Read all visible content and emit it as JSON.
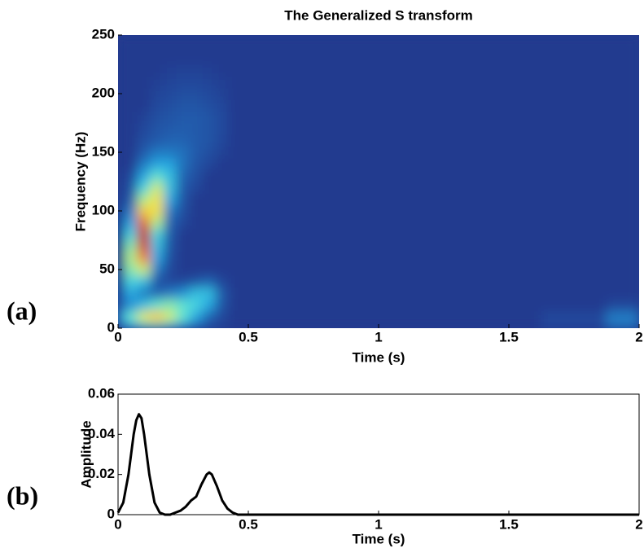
{
  "chart_data": [
    {
      "type": "heatmap",
      "title": "The Generalized S transform",
      "panel_label": "(a)",
      "x_label": "Time (s)",
      "y_label": "Frequency (Hz)",
      "x": [
        0,
        0.05,
        0.1,
        0.15,
        0.2,
        0.25,
        0.3,
        0.35,
        0.4,
        0.45,
        0.5,
        0.75,
        1,
        1.25,
        1.5,
        1.75,
        2
      ],
      "y": [
        0,
        10,
        20,
        30,
        40,
        50,
        60,
        70,
        80,
        90,
        100,
        110,
        120,
        130,
        140,
        150,
        160,
        170,
        180,
        190,
        200,
        210,
        220,
        230,
        240,
        250
      ],
      "z": [
        [
          0.1,
          0.3,
          0.4,
          0.45,
          0.35,
          0.25,
          0.15,
          0.08,
          0.03,
          0,
          0,
          0,
          0,
          0,
          0,
          0.05,
          0.2
        ],
        [
          0.25,
          0.45,
          0.65,
          0.75,
          0.6,
          0.45,
          0.3,
          0.15,
          0.05,
          0,
          0,
          0,
          0,
          0,
          0,
          0.05,
          0.2
        ],
        [
          0.1,
          0.25,
          0.35,
          0.45,
          0.5,
          0.45,
          0.4,
          0.3,
          0.1,
          0,
          0,
          0,
          0,
          0,
          0,
          0,
          0.05
        ],
        [
          0.05,
          0.3,
          0.2,
          0.15,
          0.2,
          0.25,
          0.35,
          0.35,
          0.12,
          0,
          0,
          0,
          0,
          0,
          0,
          0,
          0
        ],
        [
          0,
          0.4,
          0.35,
          0.1,
          0.05,
          0.05,
          0.1,
          0.15,
          0.05,
          0,
          0,
          0,
          0,
          0,
          0,
          0,
          0
        ],
        [
          0,
          0.5,
          0.6,
          0.2,
          0.05,
          0,
          0,
          0,
          0,
          0,
          0,
          0,
          0,
          0,
          0,
          0,
          0
        ],
        [
          0,
          0.55,
          0.85,
          0.3,
          0.08,
          0,
          0,
          0,
          0,
          0,
          0,
          0,
          0,
          0,
          0,
          0,
          0
        ],
        [
          0,
          0.5,
          0.95,
          0.35,
          0.1,
          0,
          0,
          0,
          0,
          0,
          0,
          0,
          0,
          0,
          0,
          0,
          0
        ],
        [
          0,
          0.4,
          1,
          0.4,
          0.12,
          0,
          0,
          0,
          0,
          0,
          0,
          0,
          0,
          0,
          0,
          0,
          0
        ],
        [
          0,
          0.3,
          0.9,
          0.55,
          0.15,
          0.05,
          0,
          0,
          0,
          0,
          0,
          0,
          0,
          0,
          0,
          0,
          0
        ],
        [
          0,
          0.2,
          0.75,
          0.7,
          0.2,
          0.08,
          0,
          0,
          0,
          0,
          0,
          0,
          0,
          0,
          0,
          0,
          0
        ],
        [
          0,
          0.12,
          0.55,
          0.7,
          0.3,
          0.1,
          0,
          0,
          0,
          0,
          0,
          0,
          0,
          0,
          0,
          0,
          0
        ],
        [
          0,
          0.08,
          0.4,
          0.6,
          0.35,
          0.12,
          0.05,
          0,
          0,
          0,
          0,
          0,
          0,
          0,
          0,
          0,
          0
        ],
        [
          0,
          0.05,
          0.3,
          0.45,
          0.35,
          0.15,
          0.08,
          0,
          0,
          0,
          0,
          0,
          0,
          0,
          0,
          0,
          0
        ],
        [
          0,
          0,
          0.2,
          0.3,
          0.3,
          0.18,
          0.1,
          0.05,
          0,
          0,
          0,
          0,
          0,
          0,
          0,
          0,
          0
        ],
        [
          0,
          0,
          0.12,
          0.2,
          0.2,
          0.18,
          0.12,
          0.08,
          0.03,
          0,
          0,
          0,
          0,
          0,
          0,
          0,
          0
        ],
        [
          0,
          0,
          0.08,
          0.12,
          0.15,
          0.15,
          0.12,
          0.1,
          0.05,
          0,
          0,
          0,
          0,
          0,
          0,
          0,
          0
        ],
        [
          0,
          0,
          0.05,
          0.1,
          0.12,
          0.13,
          0.12,
          0.1,
          0.06,
          0,
          0,
          0,
          0,
          0,
          0,
          0,
          0
        ],
        [
          0,
          0,
          0.03,
          0.08,
          0.1,
          0.12,
          0.12,
          0.1,
          0.06,
          0,
          0,
          0,
          0,
          0,
          0,
          0,
          0
        ],
        [
          0,
          0,
          0,
          0.06,
          0.08,
          0.1,
          0.1,
          0.08,
          0.05,
          0,
          0,
          0,
          0,
          0,
          0,
          0,
          0
        ],
        [
          0,
          0,
          0,
          0.04,
          0.06,
          0.08,
          0.08,
          0.06,
          0.03,
          0,
          0,
          0,
          0,
          0,
          0,
          0,
          0
        ],
        [
          0,
          0,
          0,
          0.02,
          0.04,
          0.05,
          0.05,
          0.04,
          0.02,
          0,
          0,
          0,
          0,
          0,
          0,
          0,
          0
        ],
        [
          0,
          0,
          0,
          0,
          0.02,
          0.03,
          0.03,
          0.02,
          0,
          0,
          0,
          0,
          0,
          0,
          0,
          0,
          0
        ],
        [
          0,
          0,
          0,
          0,
          0,
          0,
          0,
          0,
          0,
          0,
          0,
          0,
          0,
          0,
          0,
          0,
          0
        ],
        [
          0,
          0,
          0,
          0,
          0,
          0,
          0,
          0,
          0,
          0,
          0,
          0,
          0,
          0,
          0,
          0,
          0
        ],
        [
          0,
          0,
          0,
          0,
          0,
          0,
          0,
          0,
          0,
          0,
          0,
          0,
          0,
          0,
          0,
          0,
          0
        ]
      ],
      "zlim": [
        0,
        1
      ],
      "colormap": [
        "#243a8f",
        "#2060b0",
        "#20a0e0",
        "#50e0e0",
        "#c0f080",
        "#f5e040",
        "#f08020",
        "#c01818"
      ],
      "xlim": [
        0,
        2
      ],
      "xticks": [
        0,
        0.5,
        1,
        1.5,
        2
      ],
      "ylim": [
        0,
        250
      ],
      "yticks": [
        0,
        50,
        100,
        150,
        200,
        250
      ]
    },
    {
      "type": "line",
      "panel_label": "(b)",
      "x_label": "Time (s)",
      "y_label": "Amplitude",
      "color": "#000000",
      "x": [
        0,
        0.02,
        0.04,
        0.06,
        0.07,
        0.08,
        0.09,
        0.1,
        0.12,
        0.14,
        0.16,
        0.18,
        0.2,
        0.22,
        0.24,
        0.26,
        0.28,
        0.29,
        0.3,
        0.32,
        0.34,
        0.35,
        0.36,
        0.38,
        0.4,
        0.42,
        0.44,
        0.46,
        0.5,
        1,
        1.5,
        2
      ],
      "values": [
        0.001,
        0.006,
        0.02,
        0.04,
        0.047,
        0.05,
        0.048,
        0.04,
        0.02,
        0.006,
        0.001,
        0,
        0,
        0.001,
        0.002,
        0.004,
        0.007,
        0.008,
        0.009,
        0.015,
        0.02,
        0.021,
        0.02,
        0.014,
        0.007,
        0.003,
        0.001,
        0,
        0,
        0,
        0,
        0
      ],
      "xlim": [
        0,
        2
      ],
      "xticks": [
        0,
        0.5,
        1,
        1.5,
        2
      ],
      "ylim": [
        0,
        0.06
      ],
      "yticks": [
        0,
        0.02,
        0.04,
        0.06
      ]
    }
  ]
}
